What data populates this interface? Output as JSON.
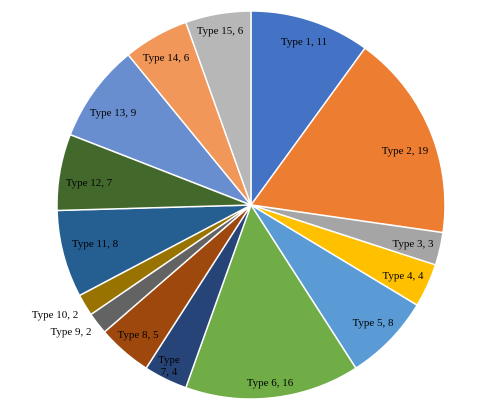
{
  "chart_data": {
    "type": "pie",
    "title": "",
    "slices": [
      {
        "category": "Type 1",
        "value": 11,
        "label": "Type 1, 11",
        "color": "#4472C4"
      },
      {
        "category": "Type 2",
        "value": 19,
        "label": "Type 2, 19",
        "color": "#ED7D31"
      },
      {
        "category": "Type 3",
        "value": 3,
        "label": "Type 3, 3",
        "color": "#A5A5A5"
      },
      {
        "category": "Type 4",
        "value": 4,
        "label": "Type 4, 4",
        "color": "#FFC000"
      },
      {
        "category": "Type 5",
        "value": 8,
        "label": "Type 5, 8",
        "color": "#5B9BD5"
      },
      {
        "category": "Type 6",
        "value": 16,
        "label": "Type 6, 16",
        "color": "#70AD47"
      },
      {
        "category": "Type 7",
        "value": 4,
        "label": "Type 7, 4",
        "color": "#264478"
      },
      {
        "category": "Type 8",
        "value": 5,
        "label": "Type 8, 5",
        "color": "#9E480E"
      },
      {
        "category": "Type 9",
        "value": 2,
        "label": "Type 9, 2",
        "color": "#636363"
      },
      {
        "category": "Type 10",
        "value": 2,
        "label": "Type 10, 2",
        "color": "#997300"
      },
      {
        "category": "Type 11",
        "value": 8,
        "label": "Type 11, 8",
        "color": "#255E91"
      },
      {
        "category": "Type 12",
        "value": 7,
        "label": "Type 12, 7",
        "color": "#43682B"
      },
      {
        "category": "Type 13",
        "value": 9,
        "label": "Type 13, 9",
        "color": "#698ED0"
      },
      {
        "category": "Type 14",
        "value": 6,
        "label": "Type 14, 6",
        "color": "#F1975A"
      },
      {
        "category": "Type 15",
        "value": 6,
        "label": "Type 15, 6",
        "color": "#B7B7B7"
      }
    ],
    "start_angle": "12 o'clock",
    "direction": "clockwise",
    "legend": "none",
    "data_labels": "category, value"
  }
}
